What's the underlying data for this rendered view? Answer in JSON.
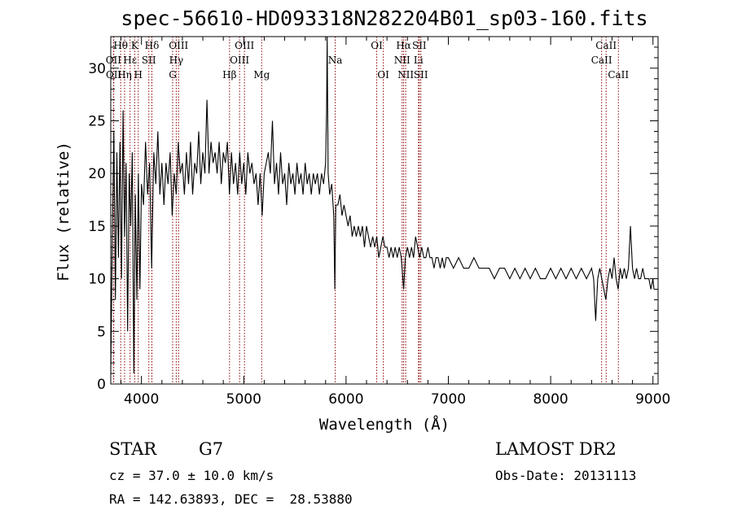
{
  "chart_data": {
    "type": "line",
    "title": "spec-56610-HD093318N282204B01_sp03-160.fits",
    "xlabel": "Wavelength (Å)",
    "ylabel": "Flux (relative)",
    "xlim": [
      3700,
      9050
    ],
    "ylim": [
      0,
      33
    ],
    "xticks": [
      4000,
      5000,
      6000,
      7000,
      8000,
      9000
    ],
    "yticks": [
      0,
      5,
      10,
      15,
      20,
      25,
      30
    ],
    "grid": false,
    "line_color": "#000000",
    "marker_color": "#8b0000",
    "spectrum_points": [
      [
        3700,
        1
      ],
      [
        3715,
        14
      ],
      [
        3730,
        24
      ],
      [
        3745,
        8
      ],
      [
        3760,
        22
      ],
      [
        3775,
        12
      ],
      [
        3790,
        23
      ],
      [
        3805,
        10
      ],
      [
        3820,
        26
      ],
      [
        3835,
        14
      ],
      [
        3850,
        21
      ],
      [
        3865,
        5
      ],
      [
        3880,
        20
      ],
      [
        3895,
        15
      ],
      [
        3910,
        22
      ],
      [
        3925,
        1
      ],
      [
        3940,
        18
      ],
      [
        3955,
        8
      ],
      [
        3970,
        20
      ],
      [
        3985,
        9
      ],
      [
        4000,
        19
      ],
      [
        4020,
        17
      ],
      [
        4040,
        23
      ],
      [
        4060,
        18
      ],
      [
        4080,
        21
      ],
      [
        4100,
        11
      ],
      [
        4120,
        22
      ],
      [
        4140,
        19
      ],
      [
        4160,
        24
      ],
      [
        4180,
        18
      ],
      [
        4200,
        21
      ],
      [
        4220,
        17
      ],
      [
        4240,
        21
      ],
      [
        4260,
        19
      ],
      [
        4280,
        22
      ],
      [
        4300,
        16
      ],
      [
        4320,
        20
      ],
      [
        4340,
        18
      ],
      [
        4360,
        23
      ],
      [
        4380,
        20
      ],
      [
        4400,
        21
      ],
      [
        4420,
        18
      ],
      [
        4440,
        22
      ],
      [
        4460,
        19
      ],
      [
        4480,
        23
      ],
      [
        4500,
        18
      ],
      [
        4520,
        21
      ],
      [
        4540,
        20
      ],
      [
        4560,
        24
      ],
      [
        4580,
        19
      ],
      [
        4600,
        22
      ],
      [
        4620,
        20
      ],
      [
        4640,
        27
      ],
      [
        4660,
        20
      ],
      [
        4680,
        23
      ],
      [
        4700,
        21
      ],
      [
        4720,
        22
      ],
      [
        4740,
        20
      ],
      [
        4760,
        23
      ],
      [
        4780,
        19
      ],
      [
        4800,
        22
      ],
      [
        4820,
        21
      ],
      [
        4840,
        23
      ],
      [
        4860,
        18
      ],
      [
        4880,
        22
      ],
      [
        4900,
        19
      ],
      [
        4920,
        21
      ],
      [
        4940,
        18
      ],
      [
        4960,
        22
      ],
      [
        4980,
        19
      ],
      [
        5000,
        21
      ],
      [
        5020,
        18
      ],
      [
        5040,
        22
      ],
      [
        5060,
        20
      ],
      [
        5080,
        21
      ],
      [
        5100,
        19
      ],
      [
        5120,
        20
      ],
      [
        5140,
        17
      ],
      [
        5160,
        20
      ],
      [
        5180,
        16
      ],
      [
        5200,
        20
      ],
      [
        5220,
        21
      ],
      [
        5240,
        22
      ],
      [
        5260,
        20
      ],
      [
        5280,
        25
      ],
      [
        5300,
        19
      ],
      [
        5320,
        21
      ],
      [
        5340,
        18
      ],
      [
        5360,
        22
      ],
      [
        5380,
        19
      ],
      [
        5400,
        20
      ],
      [
        5420,
        17
      ],
      [
        5440,
        21
      ],
      [
        5460,
        19
      ],
      [
        5480,
        20
      ],
      [
        5500,
        18
      ],
      [
        5520,
        21
      ],
      [
        5540,
        19
      ],
      [
        5560,
        20
      ],
      [
        5580,
        18
      ],
      [
        5600,
        21
      ],
      [
        5620,
        19
      ],
      [
        5640,
        20
      ],
      [
        5660,
        18
      ],
      [
        5680,
        20
      ],
      [
        5700,
        19
      ],
      [
        5720,
        20
      ],
      [
        5740,
        18
      ],
      [
        5760,
        20
      ],
      [
        5780,
        19
      ],
      [
        5800,
        21
      ],
      [
        5810,
        26
      ],
      [
        5815,
        33
      ],
      [
        5825,
        20
      ],
      [
        5840,
        18
      ],
      [
        5860,
        19
      ],
      [
        5880,
        16
      ],
      [
        5890,
        9
      ],
      [
        5900,
        17
      ],
      [
        5920,
        17
      ],
      [
        5940,
        18
      ],
      [
        5960,
        16
      ],
      [
        5980,
        17
      ],
      [
        6000,
        16
      ],
      [
        6020,
        15
      ],
      [
        6040,
        16
      ],
      [
        6060,
        14
      ],
      [
        6080,
        15
      ],
      [
        6100,
        14
      ],
      [
        6120,
        15
      ],
      [
        6140,
        14
      ],
      [
        6160,
        15
      ],
      [
        6180,
        13
      ],
      [
        6200,
        15
      ],
      [
        6220,
        14
      ],
      [
        6240,
        13
      ],
      [
        6260,
        14
      ],
      [
        6280,
        13
      ],
      [
        6300,
        14
      ],
      [
        6320,
        12
      ],
      [
        6340,
        13
      ],
      [
        6360,
        14
      ],
      [
        6380,
        13
      ],
      [
        6400,
        13
      ],
      [
        6420,
        12
      ],
      [
        6440,
        13
      ],
      [
        6460,
        12
      ],
      [
        6480,
        13
      ],
      [
        6500,
        12
      ],
      [
        6520,
        13
      ],
      [
        6540,
        12
      ],
      [
        6563,
        9
      ],
      [
        6580,
        12
      ],
      [
        6600,
        13
      ],
      [
        6620,
        12
      ],
      [
        6640,
        13
      ],
      [
        6660,
        12
      ],
      [
        6680,
        14
      ],
      [
        6700,
        13
      ],
      [
        6720,
        12
      ],
      [
        6740,
        13
      ],
      [
        6760,
        12
      ],
      [
        6780,
        12
      ],
      [
        6800,
        13
      ],
      [
        6820,
        12
      ],
      [
        6840,
        12
      ],
      [
        6860,
        11
      ],
      [
        6880,
        12
      ],
      [
        6900,
        12
      ],
      [
        6920,
        11
      ],
      [
        6940,
        12
      ],
      [
        6960,
        11
      ],
      [
        6980,
        12
      ],
      [
        7000,
        12
      ],
      [
        7050,
        11
      ],
      [
        7100,
        12
      ],
      [
        7150,
        11
      ],
      [
        7200,
        11
      ],
      [
        7250,
        12
      ],
      [
        7300,
        11
      ],
      [
        7350,
        11
      ],
      [
        7400,
        11
      ],
      [
        7450,
        10
      ],
      [
        7500,
        11
      ],
      [
        7550,
        11
      ],
      [
        7600,
        10
      ],
      [
        7650,
        11
      ],
      [
        7700,
        10
      ],
      [
        7750,
        11
      ],
      [
        7800,
        10
      ],
      [
        7850,
        11
      ],
      [
        7900,
        10
      ],
      [
        7950,
        10
      ],
      [
        8000,
        11
      ],
      [
        8050,
        10
      ],
      [
        8100,
        11
      ],
      [
        8150,
        10
      ],
      [
        8200,
        11
      ],
      [
        8250,
        10
      ],
      [
        8300,
        11
      ],
      [
        8350,
        10
      ],
      [
        8400,
        11
      ],
      [
        8420,
        10
      ],
      [
        8440,
        6
      ],
      [
        8460,
        10
      ],
      [
        8480,
        11
      ],
      [
        8500,
        10
      ],
      [
        8540,
        8
      ],
      [
        8560,
        10
      ],
      [
        8580,
        11
      ],
      [
        8600,
        10
      ],
      [
        8620,
        12
      ],
      [
        8640,
        10
      ],
      [
        8660,
        9
      ],
      [
        8680,
        11
      ],
      [
        8700,
        10
      ],
      [
        8720,
        11
      ],
      [
        8740,
        10
      ],
      [
        8760,
        11
      ],
      [
        8780,
        15
      ],
      [
        8800,
        11
      ],
      [
        8820,
        10
      ],
      [
        8840,
        11
      ],
      [
        8860,
        10
      ],
      [
        8880,
        10
      ],
      [
        8900,
        11
      ],
      [
        8920,
        10
      ],
      [
        8940,
        10
      ],
      [
        8960,
        10
      ],
      [
        8980,
        9
      ],
      [
        9000,
        10
      ],
      [
        9010,
        9
      ]
    ],
    "line_markers": [
      {
        "label": "Hθ",
        "x": 3797,
        "row": 0
      },
      {
        "label": "OII",
        "x": 3727,
        "row": 1
      },
      {
        "label": "OII",
        "x": 3729,
        "row": 2
      },
      {
        "label": "Hη",
        "x": 3835,
        "row": 2
      },
      {
        "label": "Hε",
        "x": 3889,
        "row": 1
      },
      {
        "label": "K",
        "x": 3934,
        "row": 0
      },
      {
        "label": "H",
        "x": 3969,
        "row": 2
      },
      {
        "label": "SII",
        "x": 4072,
        "row": 1
      },
      {
        "label": "Hδ",
        "x": 4102,
        "row": 0
      },
      {
        "label": "OIII",
        "x": 4363,
        "row": 0
      },
      {
        "label": "Hγ",
        "x": 4340,
        "row": 1
      },
      {
        "label": "G",
        "x": 4305,
        "row": 2
      },
      {
        "label": "Hβ",
        "x": 4861,
        "row": 2
      },
      {
        "label": "OIII",
        "x": 5007,
        "row": 0
      },
      {
        "label": "OIII",
        "x": 4959,
        "row": 1
      },
      {
        "label": "Mg",
        "x": 5175,
        "row": 2
      },
      {
        "label": "Na",
        "x": 5894,
        "row": 1
      },
      {
        "label": "OI",
        "x": 6300,
        "row": 0
      },
      {
        "label": "OI",
        "x": 6364,
        "row": 2
      },
      {
        "label": "Hα",
        "x": 6563,
        "row": 0
      },
      {
        "label": "NII",
        "x": 6548,
        "row": 1
      },
      {
        "label": "NII",
        "x": 6583,
        "row": 2
      },
      {
        "label": "SII",
        "x": 6716,
        "row": 0
      },
      {
        "label": "Li",
        "x": 6708,
        "row": 1
      },
      {
        "label": "SII",
        "x": 6731,
        "row": 2
      },
      {
        "label": "CaII",
        "x": 8542,
        "row": 0
      },
      {
        "label": "CaII",
        "x": 8498,
        "row": 1
      },
      {
        "label": "CaII",
        "x": 8662,
        "row": 2
      }
    ]
  },
  "info": {
    "object_class": "STAR",
    "subclass": "G7",
    "survey": "LAMOST DR2",
    "velocity": "cz = 37.0 ± 10.0 km/s",
    "obs_date": "Obs-Date: 20131113",
    "coords": "RA = 142.63893, DEC =  28.53880"
  }
}
